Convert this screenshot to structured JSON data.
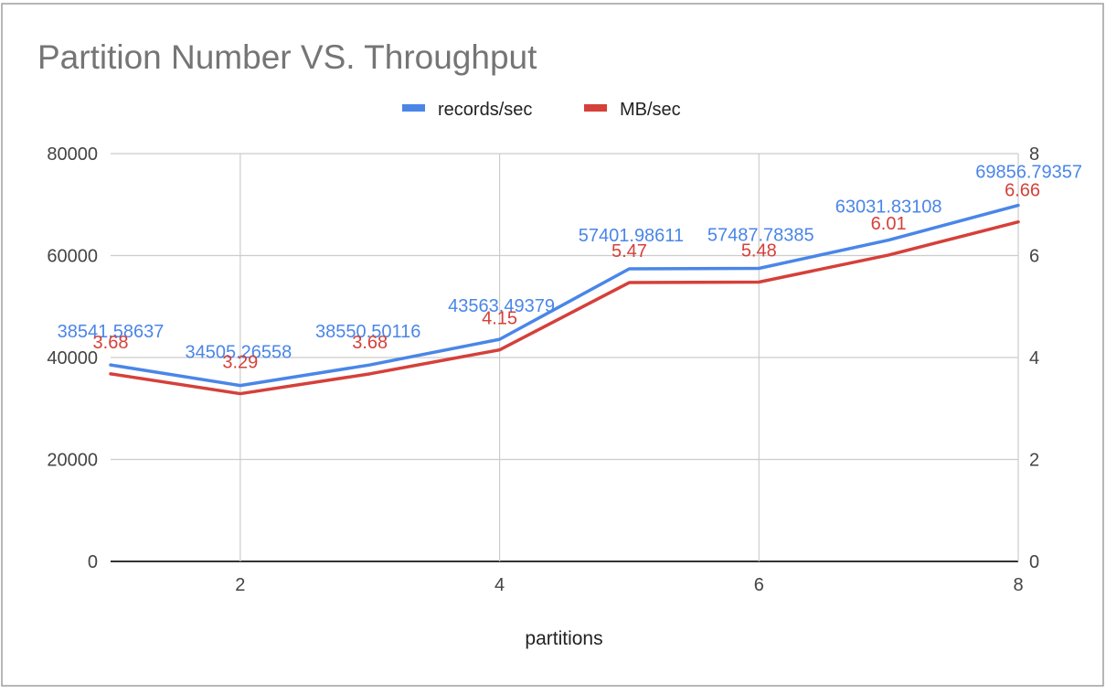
{
  "chart_data": {
    "type": "line",
    "title": "Partition Number VS. Throughput",
    "xlabel": "partitions",
    "ylabel": "",
    "x": [
      1,
      2,
      3,
      4,
      5,
      6,
      7,
      8
    ],
    "xlim": [
      1,
      8
    ],
    "x_ticks": [
      2,
      4,
      6,
      8
    ],
    "x_tick_labels": [
      "2",
      "4",
      "6",
      "8"
    ],
    "y_left": {
      "lim": [
        0,
        80000
      ],
      "ticks": [
        0,
        20000,
        40000,
        60000,
        80000
      ],
      "tick_labels": [
        "0",
        "20000",
        "40000",
        "60000",
        "80000"
      ]
    },
    "y_right": {
      "lim": [
        0,
        8
      ],
      "ticks": [
        0,
        2,
        4,
        6,
        8
      ],
      "tick_labels": [
        "0",
        "2",
        "4",
        "6",
        "8"
      ]
    },
    "grid": true,
    "legend_position": "top",
    "series": [
      {
        "name": "records/sec",
        "axis": "left",
        "color": "#4a86e8",
        "values": [
          38541.58637,
          34505.26558,
          38550.50116,
          43563.49379,
          57401.98611,
          57487.78385,
          63031.83108,
          69856.79357
        ],
        "labels": [
          "38541.58637",
          "34505.26558",
          "38550.50116",
          "43563.49379",
          "57401.98611",
          "57487.78385",
          "63031.83108",
          "69856.79357"
        ]
      },
      {
        "name": "MB/sec",
        "axis": "right",
        "color": "#d5403a",
        "values": [
          3.68,
          3.29,
          3.68,
          4.15,
          5.47,
          5.48,
          6.01,
          6.66
        ],
        "labels": [
          "3.68",
          "3.29",
          "3.68",
          "4.15",
          "5.47",
          "5.48",
          "6.01",
          "6.66"
        ]
      }
    ]
  }
}
